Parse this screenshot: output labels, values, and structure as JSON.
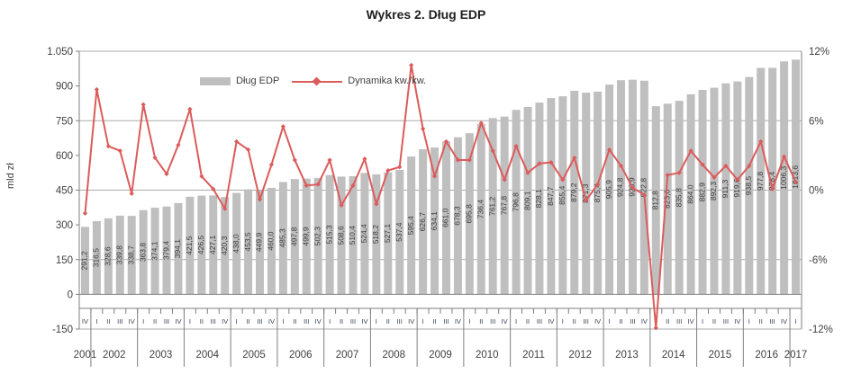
{
  "title": "Wykres 2. Dług EDP",
  "legend": {
    "bar_label": "Dług EDP",
    "line_label": "Dynamika kw./kw."
  },
  "left_axis": {
    "title": "mld zł",
    "tick_labels": [
      "1.050",
      "900",
      "750",
      "600",
      "450",
      "300",
      "150",
      "0",
      "-150"
    ],
    "tick_values": [
      1050,
      900,
      750,
      600,
      450,
      300,
      150,
      0,
      -150
    ],
    "min": -150,
    "max": 1050
  },
  "right_axis": {
    "tick_labels": [
      "12%",
      "6%",
      "0%",
      "-6%",
      "-12%"
    ],
    "tick_values": [
      12,
      6,
      0,
      -6,
      -12
    ],
    "min": -12,
    "max": 12
  },
  "colors": {
    "bar": "#bfbfbf",
    "line": "#dc5b5b",
    "grid": "#ababab",
    "axis": "#7f7f7f",
    "bar_value_label": "#3a3a3a",
    "axis_label": "#404040",
    "quarter_label": "#333f50"
  },
  "chart_data": {
    "type": "combo bar+line",
    "x_quarters": [
      "IV",
      "I",
      "II",
      "III",
      "IV",
      "I",
      "II",
      "III",
      "IV",
      "I",
      "II",
      "III",
      "IV",
      "I",
      "II",
      "III",
      "IV",
      "I",
      "II",
      "III",
      "IV",
      "I",
      "II",
      "III",
      "IV",
      "I",
      "II",
      "III",
      "IV",
      "I",
      "II",
      "III",
      "IV",
      "I",
      "II",
      "III",
      "IV",
      "I",
      "II",
      "III",
      "IV",
      "I",
      "II",
      "III",
      "IV",
      "I",
      "II",
      "III",
      "IV",
      "I",
      "II",
      "III",
      "IV",
      "I",
      "II",
      "III",
      "IV",
      "I",
      "II",
      "III",
      "IV",
      "I"
    ],
    "year_groups": [
      {
        "year": "2001",
        "quarters": 1
      },
      {
        "year": "2002",
        "quarters": 4
      },
      {
        "year": "2003",
        "quarters": 4
      },
      {
        "year": "2004",
        "quarters": 4
      },
      {
        "year": "2005",
        "quarters": 4
      },
      {
        "year": "2006",
        "quarters": 4
      },
      {
        "year": "2007",
        "quarters": 4
      },
      {
        "year": "2008",
        "quarters": 4
      },
      {
        "year": "2009",
        "quarters": 4
      },
      {
        "year": "2010",
        "quarters": 4
      },
      {
        "year": "2011",
        "quarters": 4
      },
      {
        "year": "2012",
        "quarters": 4
      },
      {
        "year": "2013",
        "quarters": 4
      },
      {
        "year": "2014",
        "quarters": 4
      },
      {
        "year": "2015",
        "quarters": 4
      },
      {
        "year": "2016",
        "quarters": 4
      },
      {
        "year": "2017",
        "quarters": 1
      }
    ],
    "gridlines_left_values": [
      1050,
      750,
      450,
      150,
      -150
    ],
    "series": [
      {
        "name": "Dług EDP",
        "type": "bar",
        "axis": "left",
        "unit": "mld zł",
        "values": [
          291.2,
          316.5,
          328.6,
          339.8,
          338.7,
          363.8,
          374.1,
          379.4,
          394.1,
          421.5,
          426.5,
          427.1,
          420.3,
          438.0,
          453.5,
          449.9,
          460.0,
          485.3,
          497.8,
          499.9,
          502.3,
          515.3,
          508.6,
          510.4,
          524.4,
          518.2,
          527.1,
          537.4,
          595.4,
          626.7,
          634.1,
          661.0,
          678.3,
          695.8,
          736.4,
          761.2,
          767.8,
          796.8,
          809.1,
          828.1,
          847.7,
          855.4,
          879.2,
          871.3,
          875.4,
          905.9,
          924.8,
          926.9,
          922.8,
          812.8,
          823.6,
          835.8,
          864.0,
          882.9,
          892.3,
          911.3,
          919.6,
          938.5,
          977.8,
          978.4,
          1006.3,
          1013.6
        ],
        "value_labels": [
          "291,2",
          "316,5",
          "328,6",
          "339,8",
          "338,7",
          "363,8",
          "374,1",
          "379,4",
          "394,1",
          "421,5",
          "426,5",
          "427,1",
          "420,3",
          "438,0",
          "453,5",
          "449,9",
          "460,0",
          "485,3",
          "497,8",
          "499,9",
          "502,3",
          "515,3",
          "508,6",
          "510,4",
          "524,4",
          "518,2",
          "527,1",
          "537,4",
          "595,4",
          "626,7",
          "634,1",
          "661,0",
          "678,3",
          "695,8",
          "736,4",
          "761,2",
          "767,8",
          "796,8",
          "809,1",
          "828,1",
          "847,7",
          "855,4",
          "879,2",
          "871,3",
          "875,4",
          "905,9",
          "924,8",
          "926,9",
          "922,8",
          "812,8",
          "823,6",
          "835,8",
          "864,0",
          "882,9",
          "892,3",
          "911,3",
          "919,6",
          "938,5",
          "977,8",
          "978,4",
          "1006,3",
          "1013,6"
        ]
      },
      {
        "name": "Dynamika kw./kw.",
        "type": "line",
        "axis": "right",
        "unit": "%",
        "values": [
          -2.0,
          8.7,
          3.8,
          3.4,
          -0.3,
          7.4,
          2.8,
          1.4,
          3.9,
          7.0,
          1.2,
          0.1,
          -1.6,
          4.2,
          3.5,
          -0.8,
          2.2,
          5.5,
          2.6,
          0.4,
          0.5,
          2.6,
          -1.3,
          0.4,
          2.7,
          -1.2,
          1.7,
          2.0,
          10.8,
          5.3,
          1.2,
          4.2,
          2.6,
          2.6,
          5.8,
          3.4,
          0.9,
          3.8,
          1.5,
          2.3,
          2.4,
          0.9,
          2.8,
          -0.9,
          0.5,
          3.5,
          2.1,
          0.2,
          -0.4,
          -11.9,
          1.3,
          1.5,
          3.4,
          2.2,
          1.1,
          2.1,
          0.9,
          2.1,
          4.2,
          0.1,
          2.9,
          0.7
        ]
      }
    ]
  }
}
